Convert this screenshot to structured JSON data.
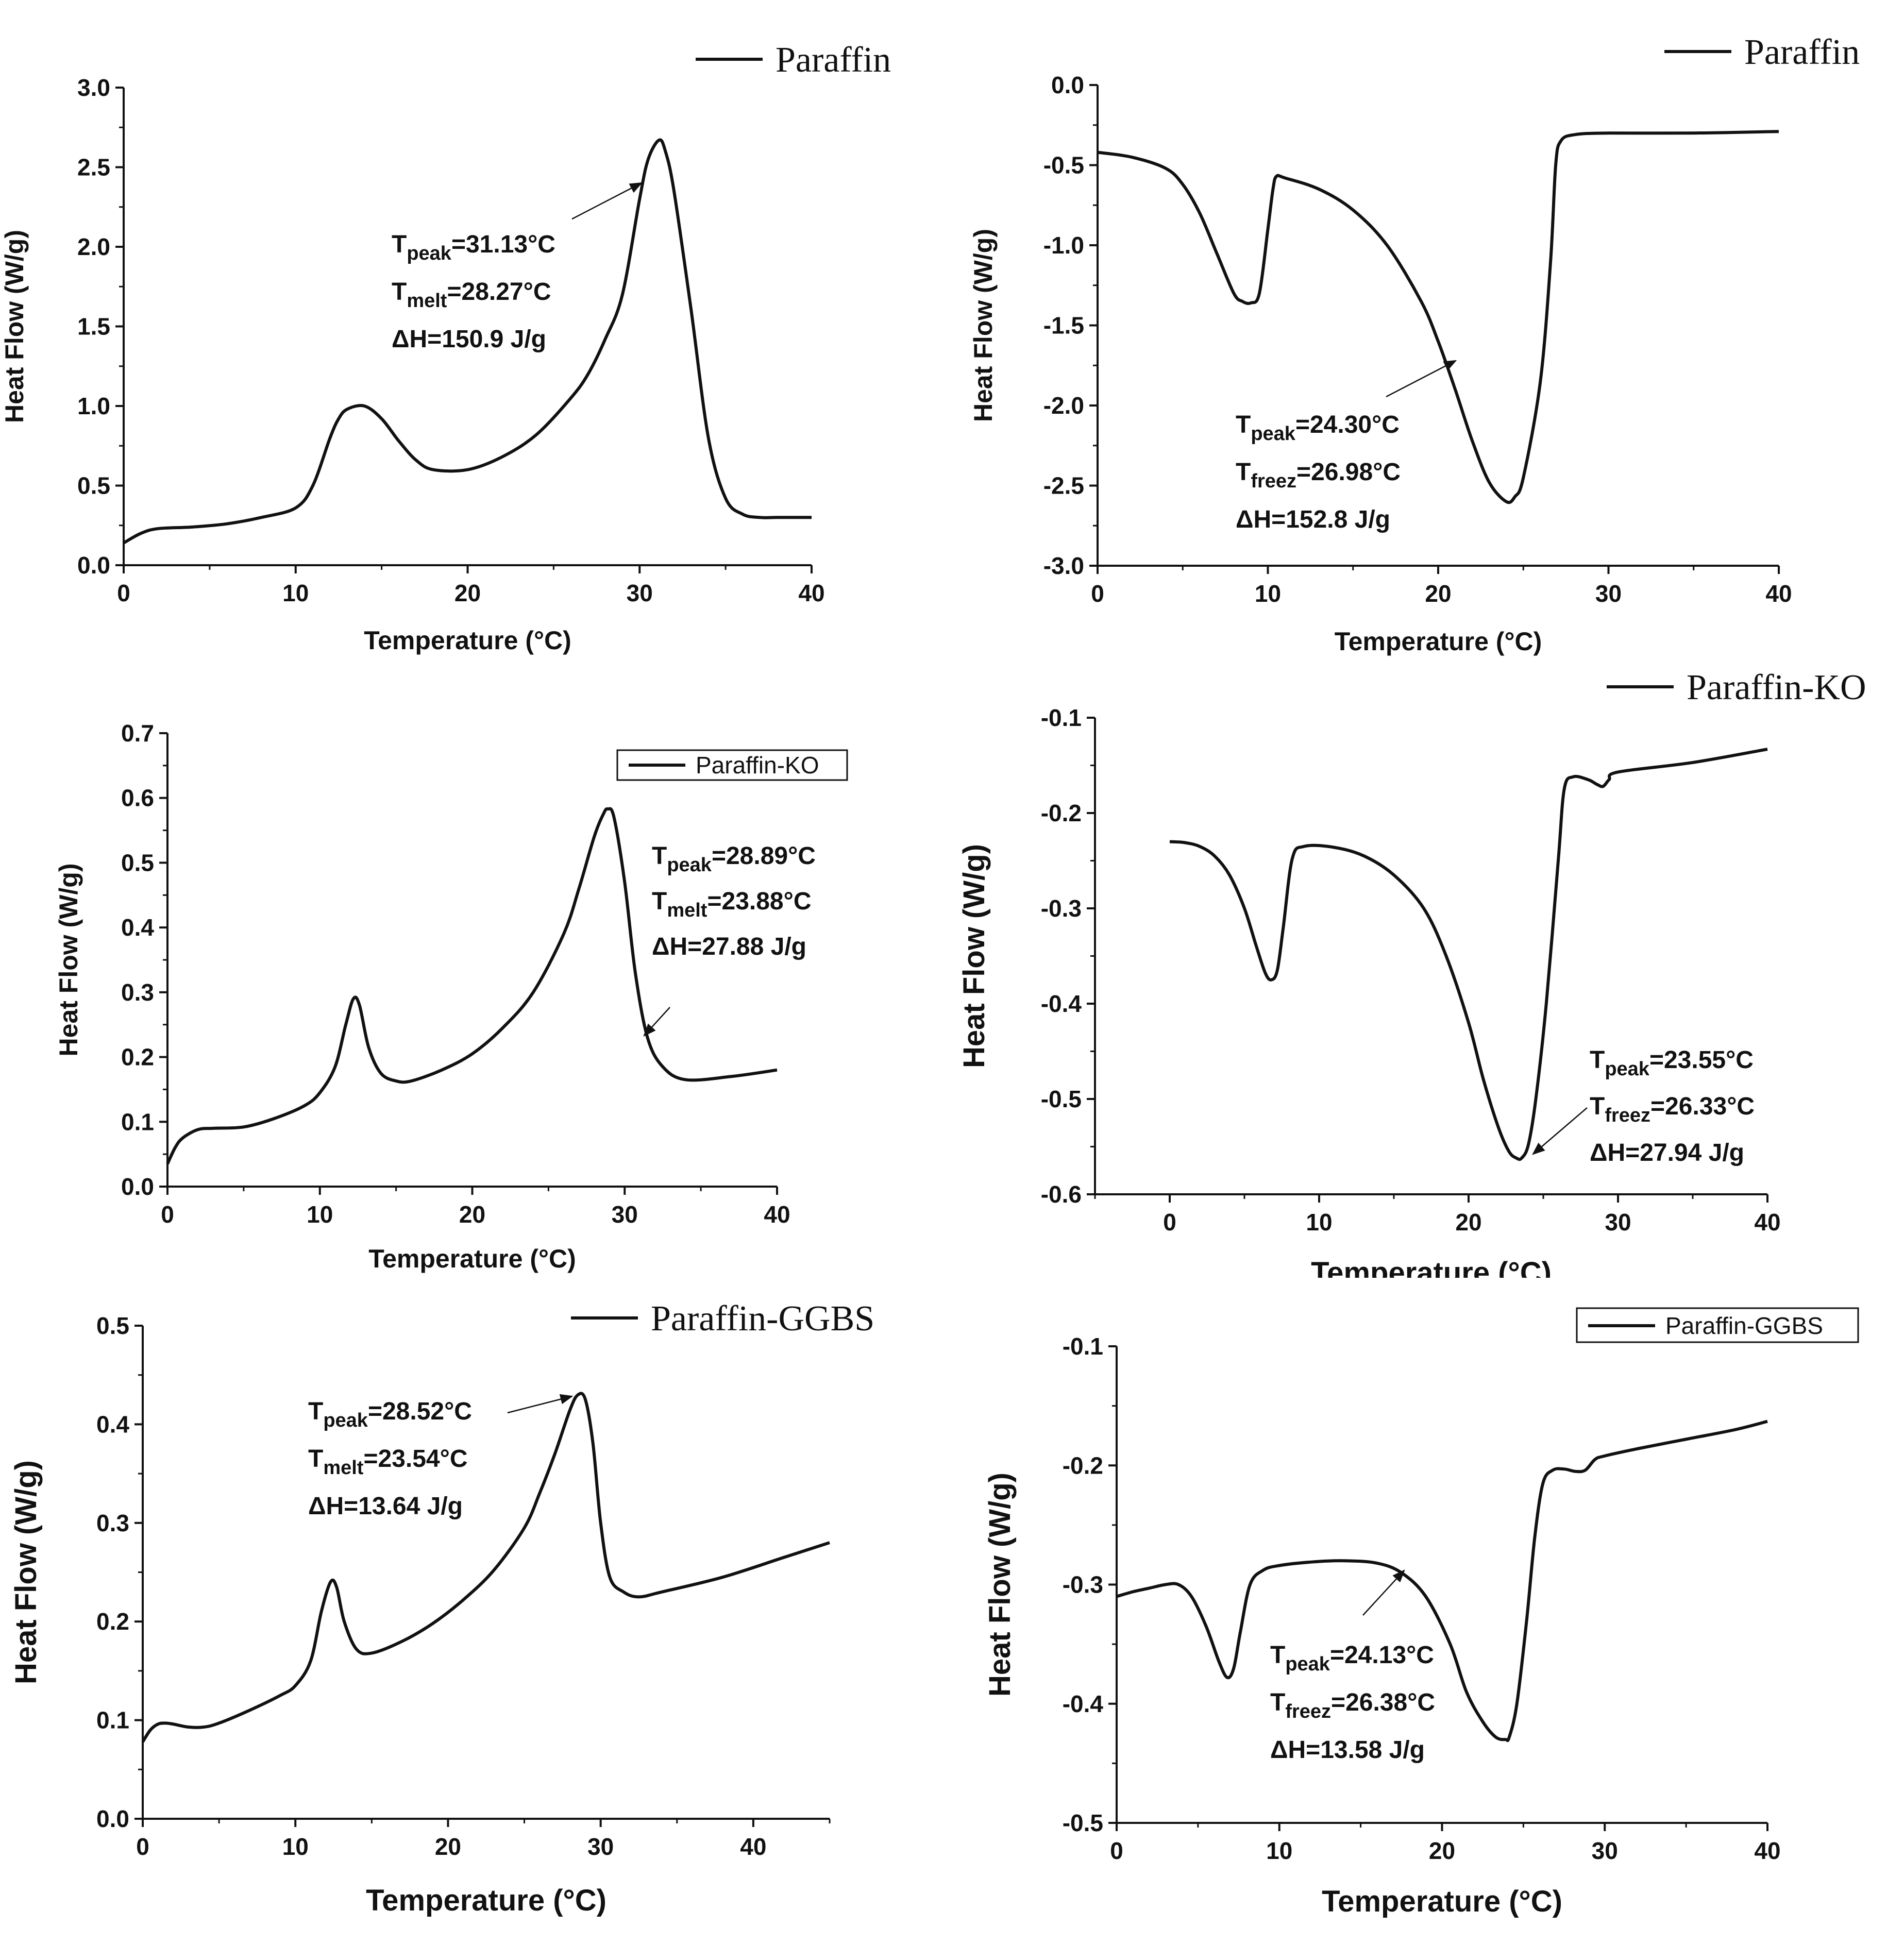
{
  "chart_data": [
    {
      "id": "p1",
      "type": "line",
      "title": "",
      "xlabel": "Temperature (°C)",
      "ylabel": "Heat Flow (W/g)",
      "xlim": [
        0,
        40
      ],
      "ylim": [
        0,
        3
      ],
      "xticks": [
        0,
        10,
        20,
        30,
        40
      ],
      "yticks": [
        0,
        0.5,
        1,
        1.5,
        2,
        2.5,
        3
      ],
      "yticklabels": [
        "0.0",
        "0.5",
        "1.0",
        "1.5",
        "2.0",
        "2.5",
        "3.0"
      ],
      "legend": {
        "label": "Paraffin",
        "style": "serif",
        "boxed": false,
        "placement": "top-right"
      },
      "annotation": {
        "peak_label": "peak",
        "peak_value": "=31.13°C",
        "t2_label": "melt",
        "t2_value": "=28.27°C",
        "dh": "ΔH=150.9 J/g"
      },
      "series": [
        {
          "name": "Paraffin",
          "x": [
            0,
            1,
            2,
            4,
            6,
            8,
            10,
            11,
            12,
            12.5,
            13,
            14,
            15,
            16,
            17,
            18,
            20,
            22,
            24,
            26,
            27,
            28,
            29,
            30,
            30.5,
            31.13,
            31.5,
            32,
            33,
            34,
            35,
            36,
            37,
            38,
            40
          ],
          "y": [
            0.14,
            0.2,
            0.23,
            0.24,
            0.26,
            0.3,
            0.36,
            0.5,
            0.8,
            0.92,
            0.98,
            1.0,
            0.92,
            0.78,
            0.66,
            0.6,
            0.6,
            0.68,
            0.82,
            1.05,
            1.2,
            1.42,
            1.7,
            2.3,
            2.55,
            2.67,
            2.6,
            2.35,
            1.6,
            0.8,
            0.42,
            0.32,
            0.3,
            0.3,
            0.3
          ]
        }
      ]
    },
    {
      "id": "p2",
      "type": "line",
      "title": "",
      "xlabel": "Temperature (°C)",
      "ylabel": "Heat Flow (W/g)",
      "xlim": [
        0,
        40
      ],
      "ylim": [
        -3,
        0
      ],
      "xticks": [
        0,
        10,
        20,
        30,
        40
      ],
      "yticks": [
        -3,
        -2.5,
        -2,
        -1.5,
        -1,
        -0.5,
        0
      ],
      "yticklabels": [
        "-3.0",
        "-2.5",
        "-2.0",
        "-1.5",
        "-1.0",
        "-0.5",
        "0.0"
      ],
      "legend": {
        "label": "Paraffin",
        "style": "serif",
        "boxed": false,
        "placement": "top-right"
      },
      "annotation": {
        "peak_label": "peak",
        "peak_value": "=24.30°C",
        "t2_label": "freez",
        "t2_value": "=26.98°C",
        "dh": "ΔH=152.8 J/g"
      },
      "series": [
        {
          "name": "Paraffin",
          "x": [
            0,
            2,
            4,
            5,
            6,
            7,
            8,
            8.5,
            9,
            9.5,
            10,
            10.3,
            10.5,
            11,
            13,
            15,
            17,
            19,
            20,
            21,
            22,
            23,
            24,
            24.5,
            25,
            26,
            26.6,
            26.9,
            27.2,
            28,
            30,
            35,
            40
          ],
          "y": [
            -0.42,
            -0.45,
            -0.52,
            -0.62,
            -0.8,
            -1.05,
            -1.3,
            -1.35,
            -1.36,
            -1.3,
            -0.9,
            -0.65,
            -0.57,
            -0.58,
            -0.65,
            -0.78,
            -1.0,
            -1.35,
            -1.6,
            -1.9,
            -2.22,
            -2.48,
            -2.6,
            -2.57,
            -2.45,
            -1.85,
            -1.1,
            -0.5,
            -0.35,
            -0.31,
            -0.3,
            -0.3,
            -0.29
          ]
        }
      ]
    },
    {
      "id": "p3",
      "type": "line",
      "title": "",
      "xlabel": "Temperature (°C)",
      "ylabel": "Heat Flow (W/g)",
      "xlim": [
        0,
        40
      ],
      "ylim": [
        0,
        0.7
      ],
      "xticks": [
        0,
        10,
        20,
        30,
        40
      ],
      "yticks": [
        0,
        0.1,
        0.2,
        0.3,
        0.4,
        0.5,
        0.6,
        0.7
      ],
      "yticklabels": [
        "0.0",
        "0.1",
        "0.2",
        "0.3",
        "0.4",
        "0.5",
        "0.6",
        "0.7"
      ],
      "legend": {
        "label": "Paraffin-KO",
        "style": "sans",
        "boxed": true,
        "placement": "top-right"
      },
      "annotation": {
        "peak_label": "peak",
        "peak_value": "=28.89°C",
        "t2_label": "melt",
        "t2_value": "=23.88°C",
        "dh": "ΔH=27.88 J/g"
      },
      "series": [
        {
          "name": "Paraffin-KO",
          "x": [
            0,
            0.5,
            1,
            2,
            3,
            5,
            7,
            9,
            10,
            11,
            11.7,
            12.2,
            12.6,
            13.2,
            14,
            15,
            16,
            18,
            20,
            22,
            24,
            26,
            27,
            28,
            28.6,
            28.89,
            29.3,
            30,
            30.7,
            31.5,
            32.5,
            34,
            37,
            40
          ],
          "y": [
            0.035,
            0.06,
            0.075,
            0.088,
            0.09,
            0.092,
            0.105,
            0.125,
            0.145,
            0.185,
            0.25,
            0.29,
            0.28,
            0.215,
            0.175,
            0.163,
            0.163,
            0.18,
            0.205,
            0.245,
            0.3,
            0.39,
            0.46,
            0.54,
            0.575,
            0.583,
            0.57,
            0.47,
            0.33,
            0.23,
            0.185,
            0.165,
            0.17,
            0.18
          ]
        }
      ]
    },
    {
      "id": "p4",
      "type": "line",
      "title": "",
      "xlabel": "Temperature (°C)",
      "ylabel": "Heat Flow (W/g)",
      "xlim": [
        -5,
        40
      ],
      "ylim": [
        -0.6,
        -0.1
      ],
      "xticks": [
        0,
        10,
        20,
        30,
        40
      ],
      "yticks": [
        -0.6,
        -0.5,
        -0.4,
        -0.3,
        -0.2,
        -0.1
      ],
      "yticklabels": [
        "-0.6",
        "-0.5",
        "-0.4",
        "-0.3",
        "-0.2",
        "-0.1"
      ],
      "legend": {
        "label": "Paraffin-KO",
        "style": "serif",
        "boxed": false,
        "placement": "top-right"
      },
      "annotation": {
        "peak_label": "peak",
        "peak_value": "=23.55°C",
        "t2_label": "freez",
        "t2_value": "=26.33°C",
        "dh": "ΔH=27.94 J/g"
      },
      "series": [
        {
          "name": "Paraffin-KO",
          "x": [
            0,
            1,
            2,
            3,
            4,
            5,
            5.8,
            6.4,
            6.8,
            7.2,
            7.6,
            8.2,
            9,
            11,
            13,
            15,
            17,
            18.5,
            20,
            21,
            22,
            22.7,
            23.2,
            23.55,
            24,
            24.5,
            25.2,
            26,
            26.4,
            27,
            28,
            28.6,
            29,
            29.4,
            30,
            35,
            40
          ],
          "y": [
            -0.23,
            -0.231,
            -0.235,
            -0.245,
            -0.265,
            -0.3,
            -0.34,
            -0.368,
            -0.375,
            -0.365,
            -0.32,
            -0.248,
            -0.235,
            -0.236,
            -0.245,
            -0.265,
            -0.3,
            -0.35,
            -0.42,
            -0.48,
            -0.53,
            -0.555,
            -0.562,
            -0.562,
            -0.548,
            -0.5,
            -0.4,
            -0.25,
            -0.175,
            -0.162,
            -0.165,
            -0.17,
            -0.172,
            -0.165,
            -0.157,
            -0.147,
            -0.133
          ]
        }
      ]
    },
    {
      "id": "p5",
      "type": "line",
      "title": "",
      "xlabel": "Temperature (°C)",
      "ylabel": "Heat Flow (W/g)",
      "xlim": [
        0,
        45
      ],
      "ylim": [
        0,
        0.5
      ],
      "xticks": [
        0,
        10,
        20,
        30,
        40
      ],
      "yticks": [
        0,
        0.1,
        0.2,
        0.3,
        0.4,
        0.5
      ],
      "yticklabels": [
        "0.0",
        "0.1",
        "0.2",
        "0.3",
        "0.4",
        "0.5"
      ],
      "legend": {
        "label": "Paraffin-GGBS",
        "style": "serif",
        "boxed": false,
        "placement": "top-right"
      },
      "annotation": {
        "peak_label": "peak",
        "peak_value": "=28.52°C",
        "t2_label": "melt",
        "t2_value": "=23.54°C",
        "dh": "ΔH=13.64 J/g"
      },
      "series": [
        {
          "name": "Paraffin-GGBS",
          "x": [
            0,
            0.5,
            1,
            1.5,
            2,
            3,
            4,
            5,
            7,
            9,
            10,
            11,
            11.7,
            12.3,
            12.7,
            13.2,
            14,
            15,
            17,
            19,
            21,
            23,
            25,
            26,
            27,
            28,
            28.52,
            29,
            29.5,
            30,
            30.6,
            31.5,
            32.5,
            34,
            38,
            42,
            45
          ],
          "y": [
            0.078,
            0.09,
            0.096,
            0.097,
            0.096,
            0.093,
            0.093,
            0.097,
            0.11,
            0.125,
            0.135,
            0.16,
            0.21,
            0.24,
            0.235,
            0.2,
            0.172,
            0.168,
            0.18,
            0.198,
            0.222,
            0.252,
            0.295,
            0.33,
            0.37,
            0.415,
            0.43,
            0.425,
            0.38,
            0.3,
            0.245,
            0.23,
            0.225,
            0.23,
            0.245,
            0.265,
            0.28
          ]
        }
      ]
    },
    {
      "id": "p6",
      "type": "line",
      "title": "",
      "xlabel": "Temperature (°C)",
      "ylabel": "Heat Flow (W/g)",
      "xlim": [
        0,
        40
      ],
      "ylim": [
        -0.5,
        -0.1
      ],
      "xticks": [
        0,
        10,
        20,
        30,
        40
      ],
      "yticks": [
        -0.5,
        -0.4,
        -0.3,
        -0.2,
        -0.1
      ],
      "yticklabels": [
        "-0.5",
        "-0.4",
        "-0.3",
        "-0.2",
        "-0.1"
      ],
      "legend": {
        "label": "Paraffin-GGBS",
        "style": "sans",
        "boxed": true,
        "placement": "top-right"
      },
      "annotation": {
        "peak_label": "peak",
        "peak_value": "=24.13°C",
        "t2_label": "freez",
        "t2_value": "=26.38°C",
        "dh": "ΔH=13.58 J/g"
      },
      "series": [
        {
          "name": "Paraffin-GGBS",
          "x": [
            0,
            1,
            2,
            3,
            3.8,
            4.6,
            5.5,
            6.3,
            6.8,
            7.2,
            7.6,
            8.2,
            9,
            10,
            12,
            14,
            16,
            17.5,
            19,
            20.5,
            21.5,
            22.5,
            23.3,
            23.9,
            24.13,
            24.6,
            25.2,
            25.7,
            26.2,
            26.8,
            27.5,
            28.2,
            28.8,
            29.4,
            30,
            32,
            35,
            38,
            40
          ],
          "y": [
            -0.31,
            -0.306,
            -0.303,
            -0.3,
            -0.3,
            -0.31,
            -0.335,
            -0.365,
            -0.378,
            -0.37,
            -0.34,
            -0.3,
            -0.288,
            -0.284,
            -0.281,
            -0.28,
            -0.282,
            -0.29,
            -0.31,
            -0.35,
            -0.39,
            -0.415,
            -0.428,
            -0.43,
            -0.428,
            -0.4,
            -0.33,
            -0.26,
            -0.215,
            -0.204,
            -0.203,
            -0.205,
            -0.204,
            -0.195,
            -0.192,
            -0.186,
            -0.178,
            -0.17,
            -0.163
          ]
        }
      ]
    }
  ]
}
